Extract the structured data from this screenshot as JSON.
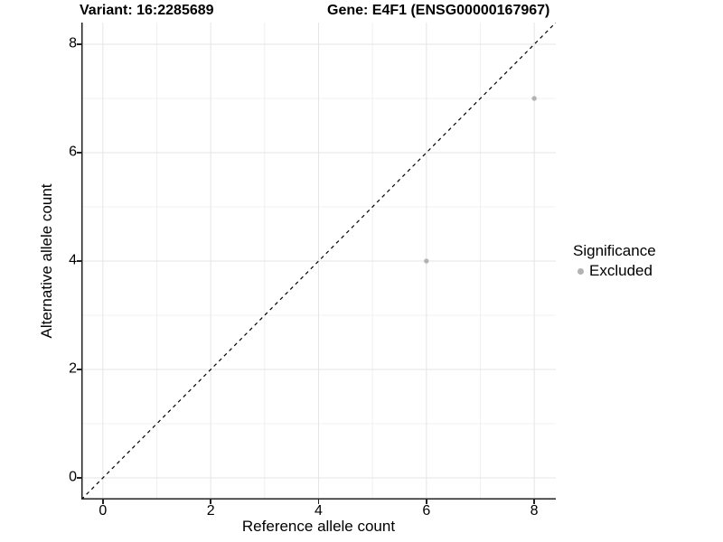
{
  "header": {
    "variant_title": "Variant: 16:2285689",
    "gene_title": "Gene: E4F1 (ENSG00000167967)"
  },
  "chart_data": {
    "type": "scatter",
    "title": "",
    "xlabel": "Reference allele count",
    "ylabel": "Alternative allele count",
    "xlim": [
      -0.4,
      8.4
    ],
    "ylim": [
      -0.4,
      8.4
    ],
    "x_ticks": [
      0,
      2,
      4,
      6,
      8
    ],
    "y_ticks": [
      0,
      2,
      4,
      6,
      8
    ],
    "x_minor": [
      1,
      3,
      5,
      7
    ],
    "y_minor": [
      1,
      3,
      5,
      7
    ],
    "grid": "on",
    "legend_position": "right",
    "reference_line": {
      "type": "identity",
      "style": "dashed",
      "from": [
        -0.4,
        -0.4
      ],
      "to": [
        8.4,
        8.4
      ],
      "color": "#000000"
    },
    "series": [
      {
        "name": "Excluded",
        "color": "#b3b3b3",
        "points": [
          {
            "x": 6,
            "y": 4
          },
          {
            "x": 8,
            "y": 7
          }
        ]
      }
    ]
  },
  "legend": {
    "title": "Significance",
    "items": [
      {
        "label": "Excluded",
        "color": "#b3b3b3"
      }
    ]
  },
  "colors": {
    "axis_line": "#222222",
    "grid_major": "#e5e5e5",
    "grid_minor": "#f0f0f0",
    "text": "#000000",
    "background": "#ffffff"
  }
}
